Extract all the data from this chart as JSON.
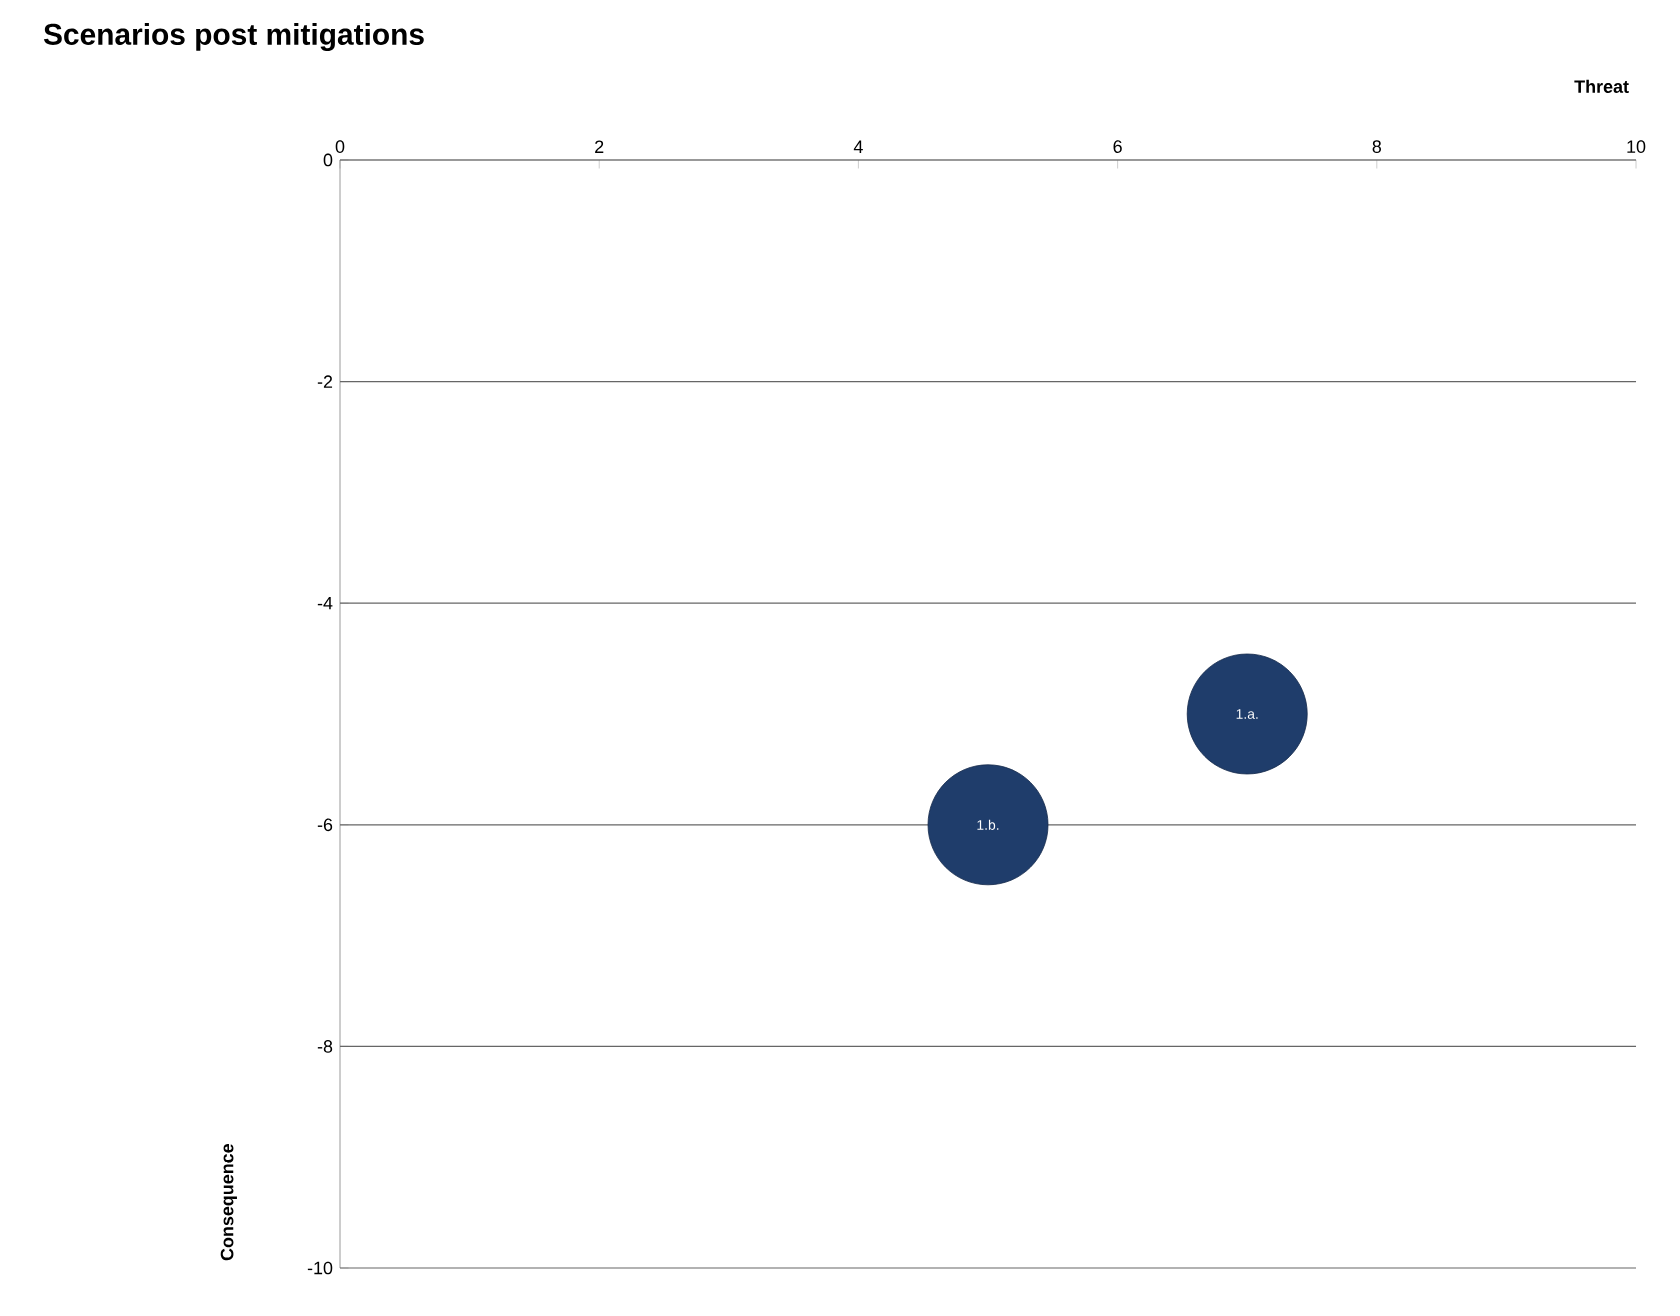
{
  "chart_data": {
    "type": "bubble",
    "title": "Scenarios post mitigations",
    "xlabel": "Threat",
    "ylabel": "Consequence",
    "xlim": [
      0,
      10
    ],
    "xticks": [
      0,
      2,
      4,
      6,
      8,
      10
    ],
    "ylim": [
      -10,
      0
    ],
    "yticks": [
      -10,
      -8,
      -6,
      -4,
      -2,
      0
    ],
    "grid": "y",
    "series": [
      {
        "name": "1.a.",
        "color": "#1f3d6b",
        "x": [
          7
        ],
        "values": [
          -5
        ],
        "sizes": [
          1
        ]
      },
      {
        "name": "1.b.",
        "color": "#1f3d6b",
        "x": [
          5
        ],
        "values": [
          -6
        ],
        "sizes": [
          1
        ]
      }
    ]
  }
}
